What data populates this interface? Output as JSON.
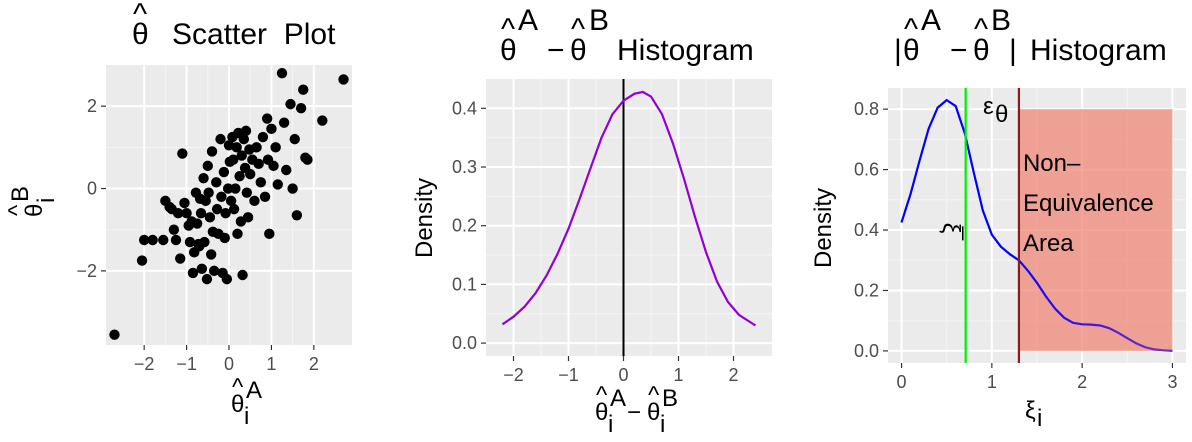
{
  "chart_data": [
    {
      "type": "scatter",
      "title": "θ̂  Scatter  Plot",
      "xlabel": "θ̂ᵢᴬ",
      "ylabel": "θ̂ᵢᴮ",
      "xlim": [
        -2.9,
        2.9
      ],
      "ylim": [
        -3.8,
        3.0
      ],
      "xticks": [
        -2,
        -1,
        0,
        1,
        2
      ],
      "yticks": [
        -2,
        0,
        2
      ],
      "grid": true,
      "points": [
        [
          -2.7,
          -3.55
        ],
        [
          -2.05,
          -1.75
        ],
        [
          -2.0,
          -1.25
        ],
        [
          -1.8,
          -1.25
        ],
        [
          -1.55,
          -1.25
        ],
        [
          -1.5,
          -0.3
        ],
        [
          -1.4,
          -0.45
        ],
        [
          -1.35,
          -0.5
        ],
        [
          -1.3,
          -1.0
        ],
        [
          -1.25,
          -1.25
        ],
        [
          -1.2,
          -0.6
        ],
        [
          -1.15,
          -1.7
        ],
        [
          -1.1,
          0.85
        ],
        [
          -1.05,
          -0.35
        ],
        [
          -1.0,
          -0.6
        ],
        [
          -0.95,
          -0.9
        ],
        [
          -0.92,
          -1.3
        ],
        [
          -0.88,
          -0.8
        ],
        [
          -0.85,
          -2.05
        ],
        [
          -0.82,
          -1.55
        ],
        [
          -0.78,
          -0.1
        ],
        [
          -0.75,
          -0.85
        ],
        [
          -0.72,
          -1.35
        ],
        [
          -0.7,
          -1.4
        ],
        [
          -0.68,
          -0.25
        ],
        [
          -0.66,
          -0.6
        ],
        [
          -0.64,
          -1.95
        ],
        [
          -0.6,
          0.25
        ],
        [
          -0.58,
          -1.3
        ],
        [
          -0.55,
          -0.3
        ],
        [
          -0.52,
          -2.2
        ],
        [
          -0.5,
          0.55
        ],
        [
          -0.48,
          -0.1
        ],
        [
          -0.45,
          -0.7
        ],
        [
          -0.42,
          -1.6
        ],
        [
          -0.4,
          0.9
        ],
        [
          -0.38,
          -1.05
        ],
        [
          -0.35,
          -2.0
        ],
        [
          -0.3,
          0.15
        ],
        [
          -0.28,
          -0.5
        ],
        [
          -0.25,
          -1.1
        ],
        [
          -0.2,
          1.2
        ],
        [
          -0.18,
          -0.2
        ],
        [
          -0.15,
          -2.05
        ],
        [
          -0.12,
          0.4
        ],
        [
          -0.1,
          -1.2
        ],
        [
          -0.08,
          -0.6
        ],
        [
          -0.05,
          -2.2
        ],
        [
          -0.02,
          0.0
        ],
        [
          0.0,
          1.05
        ],
        [
          0.02,
          0.65
        ],
        [
          0.05,
          -0.3
        ],
        [
          0.08,
          1.25
        ],
        [
          0.1,
          0.7
        ],
        [
          0.12,
          -0.5
        ],
        [
          0.15,
          0.0
        ],
        [
          0.18,
          1.0
        ],
        [
          0.2,
          -1.1
        ],
        [
          0.22,
          1.35
        ],
        [
          0.25,
          0.3
        ],
        [
          0.28,
          -0.8
        ],
        [
          0.3,
          0.8
        ],
        [
          0.32,
          -2.1
        ],
        [
          0.35,
          1.2
        ],
        [
          0.38,
          0.5
        ],
        [
          0.4,
          1.4
        ],
        [
          0.42,
          -0.1
        ],
        [
          0.45,
          -0.7
        ],
        [
          0.48,
          0.95
        ],
        [
          0.5,
          0.35
        ],
        [
          0.55,
          0.7
        ],
        [
          0.6,
          -0.3
        ],
        [
          0.65,
          1.0
        ],
        [
          0.7,
          0.6
        ],
        [
          0.75,
          0.15
        ],
        [
          0.8,
          1.25
        ],
        [
          0.85,
          -0.2
        ],
        [
          0.9,
          1.7
        ],
        [
          0.92,
          0.7
        ],
        [
          0.95,
          -1.1
        ],
        [
          1.0,
          1.45
        ],
        [
          1.05,
          0.55
        ],
        [
          1.1,
          1.0
        ],
        [
          1.15,
          0.1
        ],
        [
          1.25,
          2.8
        ],
        [
          1.3,
          1.6
        ],
        [
          1.35,
          0.45
        ],
        [
          1.45,
          2.05
        ],
        [
          1.5,
          0.0
        ],
        [
          1.55,
          1.2
        ],
        [
          1.6,
          -0.65
        ],
        [
          1.7,
          1.95
        ],
        [
          1.75,
          2.4
        ],
        [
          1.8,
          0.75
        ],
        [
          1.85,
          0.7
        ],
        [
          2.2,
          1.65
        ],
        [
          2.7,
          2.65
        ]
      ]
    },
    {
      "type": "line",
      "title": "θ̂ᴬ − θ̂ᴮ   Histogram",
      "xlabel": "θ̂ᵢᴬ − θ̂ᵢᴮ",
      "ylabel": "Density",
      "xlim": [
        -2.5,
        2.7
      ],
      "ylim": [
        -0.022,
        0.45
      ],
      "xticks": [
        -2,
        -1,
        0,
        1,
        2
      ],
      "yticks": [
        0.0,
        0.1,
        0.2,
        0.3,
        0.4
      ],
      "grid": true,
      "series": [
        {
          "color": "#9400d3",
          "x": [
            -2.2,
            -2.0,
            -1.8,
            -1.6,
            -1.4,
            -1.2,
            -1.0,
            -0.8,
            -0.6,
            -0.4,
            -0.2,
            0.0,
            0.2,
            0.35,
            0.5,
            0.7,
            0.9,
            1.1,
            1.3,
            1.5,
            1.7,
            1.9,
            2.1,
            2.4
          ],
          "y": [
            0.032,
            0.045,
            0.062,
            0.085,
            0.115,
            0.152,
            0.195,
            0.245,
            0.298,
            0.35,
            0.39,
            0.413,
            0.425,
            0.428,
            0.42,
            0.39,
            0.34,
            0.28,
            0.215,
            0.155,
            0.105,
            0.07,
            0.048,
            0.03
          ]
        }
      ],
      "vline": {
        "x": 0,
        "color": "#000000"
      }
    },
    {
      "type": "line",
      "title": "|θ̂ᴬ − θ̂ᴮ|   Histogram",
      "xlabel": "ξᵢ",
      "ylabel": "Density",
      "xlim": [
        -0.15,
        3.15
      ],
      "ylim": [
        -0.04,
        0.87
      ],
      "xticks": [
        0,
        1,
        2,
        3
      ],
      "yticks": [
        0.0,
        0.2,
        0.4,
        0.6,
        0.8
      ],
      "grid": true,
      "series": [
        {
          "colors": [
            "#0000ff",
            "#7b2fbe"
          ],
          "x": [
            0.0,
            0.1,
            0.2,
            0.3,
            0.4,
            0.5,
            0.6,
            0.7,
            0.8,
            0.9,
            1.0,
            1.1,
            1.2,
            1.3,
            1.4,
            1.5,
            1.6,
            1.7,
            1.8,
            1.9,
            2.0,
            2.1,
            2.2,
            2.3,
            2.4,
            2.5,
            2.6,
            2.7,
            2.8,
            2.9,
            3.0
          ],
          "y": [
            0.425,
            0.52,
            0.63,
            0.735,
            0.805,
            0.83,
            0.81,
            0.72,
            0.59,
            0.465,
            0.385,
            0.345,
            0.32,
            0.3,
            0.265,
            0.225,
            0.18,
            0.14,
            0.11,
            0.093,
            0.088,
            0.087,
            0.084,
            0.075,
            0.06,
            0.042,
            0.025,
            0.012,
            0.005,
            0.002,
            0.0
          ]
        }
      ],
      "vlines": [
        {
          "x": 0.71,
          "color": "#00ee00",
          "label": "ξ̄"
        },
        {
          "x": 1.3,
          "color": "#8b1a1a",
          "label": "ε_θ"
        }
      ],
      "shaded_region": {
        "x0": 1.3,
        "x1": 3.0,
        "y0": 0.0,
        "y1": 0.8,
        "color": "#f08070",
        "label_lines": [
          "Non–",
          "Equivalence",
          "Area"
        ]
      }
    }
  ]
}
